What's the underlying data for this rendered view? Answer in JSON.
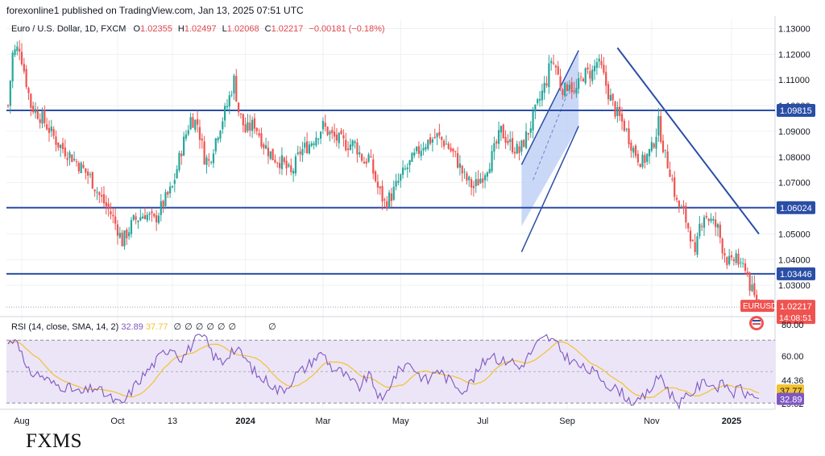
{
  "header": {
    "published_line": "forexonline1 published on TradingView.com, Jan 13, 2025 07:51 UTC"
  },
  "legend": {
    "symbol_line": "Euro / U.S. Dollar, 1D, FXCM",
    "o_label": "O",
    "o_value": "1.02355",
    "h_label": "H",
    "h_value": "1.02497",
    "l_label": "L",
    "l_value": "1.02068",
    "c_label": "C",
    "c_value": "1.02217",
    "change": "−0.00181 (−0.18%)"
  },
  "rsi_legend": {
    "title": "RSI (14, close, SMA, 14, 2)",
    "rsi_value": "32.89",
    "sma_value": "37.77",
    "na_glyphs": [
      "∅",
      "∅",
      "∅",
      "∅",
      "∅",
      "∅",
      "∅"
    ]
  },
  "brand": {
    "label": "FXMS"
  },
  "badges": {
    "ticker": "EURUSD",
    "last_price": "1.02217",
    "countdown": "14:08:51"
  },
  "colors": {
    "up": "#26a69a",
    "down": "#ef5350",
    "hline": "#2a4ea6",
    "channel_fill": "#b3c8f5",
    "channel_line": "#2a4ea6",
    "rsi_line": "#7e57c2",
    "rsi_sma": "#f2c230",
    "rsi_band": "#ece5f7",
    "price_badge": "#ef5350",
    "level_badge": "#2a4ea6"
  },
  "chart_data": {
    "type": "candlestick",
    "price_axis": {
      "ticks": [
        1.13,
        1.12,
        1.11,
        1.1,
        1.09,
        1.08,
        1.07,
        1.06,
        1.05,
        1.04,
        1.03
      ],
      "tick_labels": [
        "1.13000",
        "1.12000",
        "1.11000",
        "1.10000",
        "1.09000",
        "1.08000",
        "1.07000",
        "1.06000",
        "1.05000",
        "1.04000",
        "1.03000"
      ],
      "range": [
        1.0178,
        1.1336
      ]
    },
    "time_axis": {
      "labels": [
        "Aug",
        "Oct",
        "13",
        "2024",
        "Mar",
        "May",
        "Jul",
        "Sep",
        "Nov",
        "2025"
      ],
      "label_index": [
        6,
        48,
        72,
        104,
        138,
        172,
        208,
        245,
        282,
        317
      ],
      "bar_count": 330
    },
    "horizontal_levels": [
      {
        "value": 1.09815,
        "label": "1.09815"
      },
      {
        "value": 1.06024,
        "label": "1.06024"
      },
      {
        "value": 1.03446,
        "label": "1.03446"
      }
    ],
    "last_price": 1.02217,
    "price_anchors": [
      [
        0,
        1.1
      ],
      [
        2,
        1.12
      ],
      [
        5,
        1.123
      ],
      [
        10,
        1.1
      ],
      [
        15,
        1.095
      ],
      [
        22,
        1.085
      ],
      [
        28,
        1.08
      ],
      [
        36,
        1.072
      ],
      [
        40,
        1.065
      ],
      [
        45,
        1.058
      ],
      [
        48,
        1.052
      ],
      [
        50,
        1.047
      ],
      [
        55,
        1.055
      ],
      [
        60,
        1.058
      ],
      [
        64,
        1.055
      ],
      [
        68,
        1.062
      ],
      [
        72,
        1.068
      ],
      [
        76,
        1.083
      ],
      [
        80,
        1.095
      ],
      [
        83,
        1.093
      ],
      [
        86,
        1.08
      ],
      [
        88,
        1.078
      ],
      [
        92,
        1.09
      ],
      [
        96,
        1.1
      ],
      [
        99,
        1.11
      ],
      [
        101,
        1.098
      ],
      [
        104,
        1.09
      ],
      [
        108,
        1.093
      ],
      [
        112,
        1.085
      ],
      [
        116,
        1.08
      ],
      [
        120,
        1.078
      ],
      [
        124,
        1.073
      ],
      [
        128,
        1.082
      ],
      [
        132,
        1.085
      ],
      [
        138,
        1.092
      ],
      [
        142,
        1.088
      ],
      [
        148,
        1.085
      ],
      [
        152,
        1.085
      ],
      [
        156,
        1.078
      ],
      [
        158,
        1.08
      ],
      [
        162,
        1.068
      ],
      [
        165,
        1.062
      ],
      [
        168,
        1.065
      ],
      [
        172,
        1.072
      ],
      [
        178,
        1.08
      ],
      [
        182,
        1.085
      ],
      [
        188,
        1.088
      ],
      [
        192,
        1.085
      ],
      [
        196,
        1.08
      ],
      [
        200,
        1.072
      ],
      [
        204,
        1.068
      ],
      [
        208,
        1.073
      ],
      [
        212,
        1.08
      ],
      [
        216,
        1.09
      ],
      [
        220,
        1.085
      ],
      [
        224,
        1.082
      ],
      [
        228,
        1.09
      ],
      [
        232,
        1.1
      ],
      [
        236,
        1.11
      ],
      [
        238,
        1.118
      ],
      [
        240,
        1.115
      ],
      [
        242,
        1.108
      ],
      [
        244,
        1.106
      ],
      [
        246,
        1.11
      ],
      [
        248,
        1.104
      ],
      [
        252,
        1.112
      ],
      [
        256,
        1.113
      ],
      [
        258,
        1.117
      ],
      [
        260,
        1.114
      ],
      [
        263,
        1.105
      ],
      [
        266,
        1.098
      ],
      [
        270,
        1.092
      ],
      [
        274,
        1.083
      ],
      [
        276,
        1.08
      ],
      [
        278,
        1.078
      ],
      [
        282,
        1.083
      ],
      [
        285,
        1.093
      ],
      [
        288,
        1.08
      ],
      [
        290,
        1.075
      ],
      [
        293,
        1.062
      ],
      [
        296,
        1.058
      ],
      [
        299,
        1.05
      ],
      [
        301,
        1.04
      ],
      [
        303,
        1.053
      ],
      [
        305,
        1.058
      ],
      [
        308,
        1.055
      ],
      [
        311,
        1.052
      ],
      [
        313,
        1.045
      ],
      [
        315,
        1.04
      ],
      [
        317,
        1.038
      ],
      [
        319,
        1.042
      ],
      [
        321,
        1.036
      ],
      [
        323,
        1.038
      ],
      [
        325,
        1.03
      ],
      [
        327,
        1.025
      ],
      [
        329,
        1.02217
      ]
    ],
    "channel": {
      "upper": [
        [
          225,
          1.077
        ],
        [
          250,
          1.1215
        ]
      ],
      "lower": [
        [
          225,
          1.053
        ],
        [
          250,
          1.092
        ]
      ]
    },
    "trendline": [
      [
        267,
        1.1225
      ],
      [
        329,
        1.05
      ]
    ],
    "rsi_axis": {
      "labels": [
        "80.00",
        "60.00",
        "44.36",
        "29.62"
      ],
      "values": [
        80,
        60,
        44.36,
        29.62
      ],
      "range": [
        26,
        84
      ],
      "band": [
        30,
        70
      ]
    },
    "rsi_current": 32.89,
    "rsi_sma_current": 37.77,
    "rsi_anchors": [
      [
        0,
        68
      ],
      [
        4,
        72
      ],
      [
        8,
        50
      ],
      [
        14,
        48
      ],
      [
        20,
        42
      ],
      [
        26,
        40
      ],
      [
        32,
        36
      ],
      [
        38,
        40
      ],
      [
        44,
        34
      ],
      [
        48,
        30
      ],
      [
        50,
        29
      ],
      [
        56,
        42
      ],
      [
        62,
        52
      ],
      [
        68,
        62
      ],
      [
        72,
        66
      ],
      [
        76,
        58
      ],
      [
        82,
        70
      ],
      [
        86,
        72
      ],
      [
        90,
        60
      ],
      [
        94,
        56
      ],
      [
        98,
        64
      ],
      [
        102,
        62
      ],
      [
        106,
        54
      ],
      [
        110,
        46
      ],
      [
        114,
        44
      ],
      [
        118,
        38
      ],
      [
        122,
        40
      ],
      [
        126,
        48
      ],
      [
        130,
        52
      ],
      [
        134,
        58
      ],
      [
        138,
        62
      ],
      [
        142,
        52
      ],
      [
        146,
        50
      ],
      [
        150,
        44
      ],
      [
        154,
        40
      ],
      [
        158,
        48
      ],
      [
        162,
        36
      ],
      [
        164,
        30
      ],
      [
        168,
        44
      ],
      [
        172,
        52
      ],
      [
        176,
        56
      ],
      [
        180,
        48
      ],
      [
        184,
        44
      ],
      [
        188,
        52
      ],
      [
        192,
        46
      ],
      [
        196,
        42
      ],
      [
        200,
        38
      ],
      [
        204,
        46
      ],
      [
        208,
        55
      ],
      [
        212,
        62
      ],
      [
        216,
        56
      ],
      [
        220,
        58
      ],
      [
        224,
        52
      ],
      [
        228,
        60
      ],
      [
        232,
        68
      ],
      [
        236,
        72
      ],
      [
        240,
        68
      ],
      [
        244,
        60
      ],
      [
        248,
        56
      ],
      [
        252,
        52
      ],
      [
        256,
        50
      ],
      [
        260,
        46
      ],
      [
        264,
        40
      ],
      [
        268,
        38
      ],
      [
        272,
        32
      ],
      [
        276,
        30
      ],
      [
        280,
        36
      ],
      [
        284,
        44
      ],
      [
        286,
        48
      ],
      [
        290,
        36
      ],
      [
        294,
        30
      ],
      [
        298,
        34
      ],
      [
        302,
        40
      ],
      [
        306,
        44
      ],
      [
        310,
        40
      ],
      [
        314,
        42
      ],
      [
        318,
        36
      ],
      [
        321,
        40
      ],
      [
        324,
        34
      ],
      [
        327,
        36
      ],
      [
        329,
        32.89
      ]
    ]
  }
}
